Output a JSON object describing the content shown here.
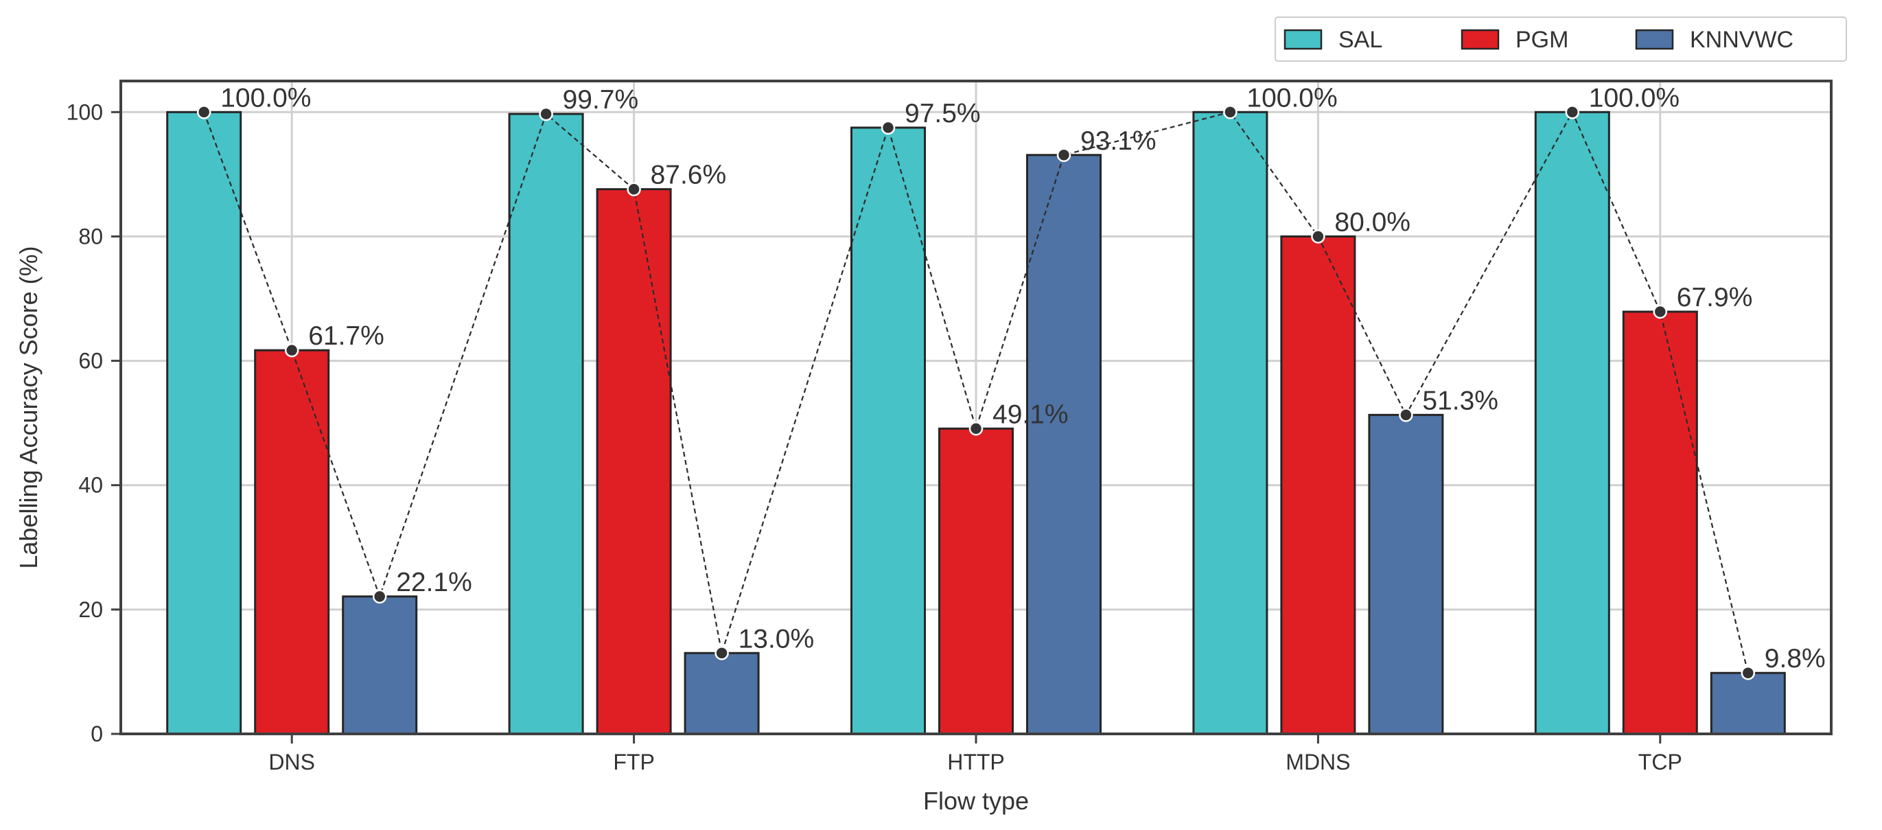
{
  "chart_data": {
    "type": "bar",
    "title": "",
    "xlabel": "Flow type",
    "ylabel": "Labelling Accuracy Score (%)",
    "categories": [
      "DNS",
      "FTP",
      "HTTP",
      "MDNS",
      "TCP"
    ],
    "ylim": [
      0,
      105
    ],
    "yticks": [
      0,
      20,
      40,
      60,
      80,
      100
    ],
    "grid": true,
    "legend_position": "top-right, above plot",
    "series": [
      {
        "name": "SAL",
        "color": "#47c2c6",
        "values": [
          100.0,
          99.7,
          97.5,
          100.0,
          100.0
        ]
      },
      {
        "name": "PGM",
        "color": "#e01f25",
        "values": [
          61.7,
          87.6,
          49.1,
          80.0,
          67.9
        ]
      },
      {
        "name": "KNNVWC",
        "color": "#4f73a5",
        "values": [
          22.1,
          13.0,
          93.1,
          51.3,
          9.8
        ]
      }
    ],
    "data_labels": [
      [
        "100.0%",
        "99.7%",
        "97.5%",
        "100.0%",
        "100.0%"
      ],
      [
        "61.7%",
        "87.6%",
        "49.1%",
        "80.0%",
        "67.9%"
      ],
      [
        "22.1%",
        "13.0%",
        "93.1%",
        "51.3%",
        "9.8%"
      ]
    ],
    "overlay": "dashed line connecting bar tops in order"
  }
}
